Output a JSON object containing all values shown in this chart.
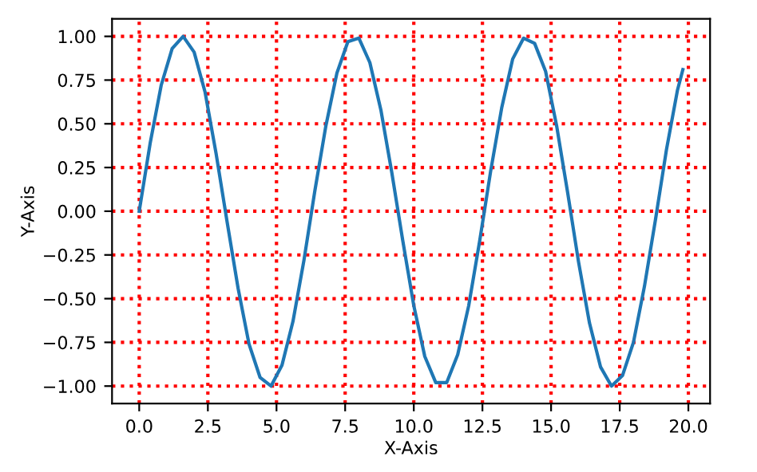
{
  "chart_data": {
    "type": "line",
    "xlabel": "X-Axis",
    "ylabel": "Y-Axis",
    "x": [
      0,
      0.4,
      0.8,
      1.2,
      1.6,
      2.0,
      2.4,
      2.8,
      3.2,
      3.6,
      4.0,
      4.4,
      4.8,
      5.2,
      5.6,
      6.0,
      6.4,
      6.8,
      7.2,
      7.6,
      8.0,
      8.4,
      8.8,
      9.2,
      9.6,
      10.0,
      10.4,
      10.8,
      11.2,
      11.6,
      12.0,
      12.4,
      12.8,
      13.2,
      13.6,
      14.0,
      14.4,
      14.8,
      15.2,
      15.6,
      16.0,
      16.4,
      16.8,
      17.2,
      17.6,
      18.0,
      18.4,
      18.8,
      19.2,
      19.6,
      19.8
    ],
    "series": [
      {
        "color": "#1f77b4",
        "values": [
          0,
          0.39,
          0.72,
          0.93,
          1.0,
          0.91,
          0.68,
          0.33,
          -0.06,
          -0.44,
          -0.76,
          -0.95,
          -1.0,
          -0.88,
          -0.63,
          -0.28,
          0.12,
          0.49,
          0.79,
          0.97,
          0.99,
          0.85,
          0.58,
          0.22,
          -0.17,
          -0.54,
          -0.83,
          -0.98,
          -0.98,
          -0.82,
          -0.54,
          -0.17,
          0.23,
          0.59,
          0.87,
          0.99,
          0.96,
          0.8,
          0.49,
          0.11,
          -0.29,
          -0.64,
          -0.89,
          -1.0,
          -0.94,
          -0.75,
          -0.43,
          -0.05,
          0.35,
          0.69,
          0.81
        ]
      }
    ],
    "xlim": [
      -0.99,
      20.79
    ],
    "ylim": [
      -1.1,
      1.1
    ],
    "xticks": [
      {
        "value": 0,
        "label": "0.0"
      },
      2.5,
      {
        "value": 5,
        "label": "5.0"
      },
      7.5,
      {
        "value": 10,
        "label": "10.0"
      },
      12.5,
      {
        "value": 15,
        "label": "15.0"
      },
      17.5,
      {
        "value": 20,
        "label": "20.0"
      }
    ],
    "yticks": [
      {
        "value": -1,
        "label": "−1.00"
      },
      {
        "value": -0.75,
        "label": "−0.75"
      },
      {
        "value": -0.5,
        "label": "−0.50"
      },
      {
        "value": -0.25,
        "label": "−0.25"
      },
      {
        "value": 0,
        "label": "0.00"
      },
      {
        "value": 0.25,
        "label": "0.25"
      },
      {
        "value": 0.5,
        "label": "0.50"
      },
      {
        "value": 0.75,
        "label": "0.75"
      },
      {
        "value": 1,
        "label": "1.00"
      }
    ],
    "grid": true,
    "line_style": "solid",
    "marker": "none"
  }
}
